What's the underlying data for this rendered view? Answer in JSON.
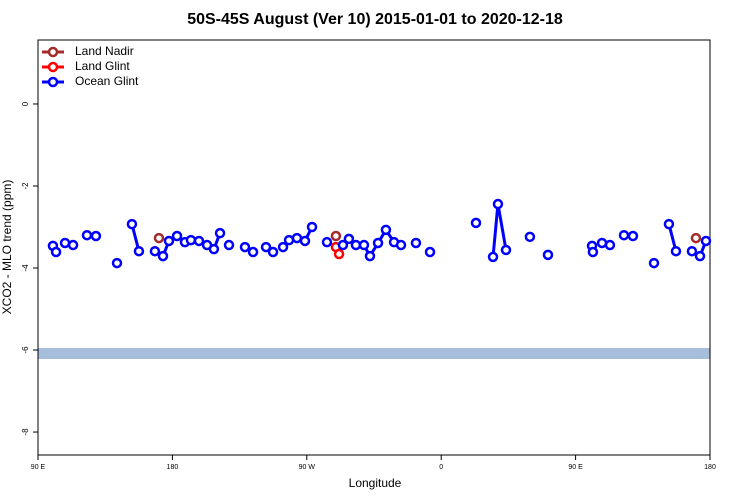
{
  "chart_data": {
    "type": "scatter",
    "title": "50S-45S August (Ver 10)   2015-01-01 to 2020-12-18",
    "x_label": "Longitude",
    "y_label": "XCO2 - MLO trend (ppm)",
    "xlim": [
      90,
      540
    ],
    "ylim": [
      -8.56,
      1.56
    ],
    "xticks": [
      {
        "value": 90,
        "label": "90 E"
      },
      180,
      {
        "value": 270,
        "label": "90 W"
      },
      {
        "value": 360,
        "label": "0"
      },
      {
        "value": 450,
        "label": "90 E"
      },
      {
        "value": 540,
        "label": "180"
      }
    ],
    "yticks": [
      0,
      -2,
      -4,
      -6,
      -8
    ],
    "legend": "top-left",
    "series": [
      {
        "name": "Land Nadir",
        "color": "#a52a2a",
        "x": [
          171.0,
          289.5,
          530.6
        ],
        "values": [
          -3.27,
          -3.22,
          -3.27
        ]
      },
      {
        "name": "Land Glint",
        "color": "#ff0000",
        "x": [
          289.5,
          291.6
        ],
        "values": [
          -3.49,
          -3.66
        ]
      },
      {
        "name": "Ocean Glint",
        "color": "#0000ff",
        "x": [
          100.0,
          102.1,
          108.1,
          113.5,
          122.8,
          128.8,
          142.9,
          152.9,
          157.6,
          168.3,
          173.7,
          177.7,
          183.1,
          188.4,
          192.4,
          197.8,
          203.2,
          207.8,
          211.9,
          217.9,
          228.6,
          234.0,
          242.7,
          247.4,
          254.1,
          258.1,
          263.4,
          268.8,
          273.5,
          283.5,
          294.2,
          298.2,
          302.9,
          308.3,
          312.3,
          317.7,
          323.0,
          328.4,
          333.1,
          343.1,
          352.5,
          383.3,
          394.7,
          398.0,
          403.4,
          419.4,
          431.5,
          461.0,
          461.6,
          467.7,
          473.0,
          482.4,
          488.4,
          502.5,
          512.5,
          517.2,
          527.9,
          533.3,
          537.3
        ],
        "values": [
          -3.46,
          -3.61,
          -3.39,
          -3.44,
          -3.2,
          -3.22,
          -3.88,
          -2.93,
          -3.59,
          -3.59,
          -3.71,
          -3.34,
          -3.22,
          -3.37,
          -3.32,
          -3.34,
          -3.44,
          -3.54,
          -3.15,
          -3.44,
          -3.49,
          -3.61,
          -3.49,
          -3.61,
          -3.49,
          -3.32,
          -3.27,
          -3.34,
          -3.0,
          -3.37,
          -3.44,
          -3.29,
          -3.44,
          -3.44,
          -3.71,
          -3.39,
          -3.07,
          -3.37,
          -3.44,
          -3.39,
          -3.61,
          -2.9,
          -3.73,
          -2.44,
          -3.56,
          -3.24,
          -3.68,
          -3.46,
          -3.61,
          -3.39,
          -3.44,
          -3.2,
          -3.22,
          -3.88,
          -2.93,
          -3.59,
          -3.59,
          -3.71,
          -3.34
        ]
      }
    ]
  }
}
